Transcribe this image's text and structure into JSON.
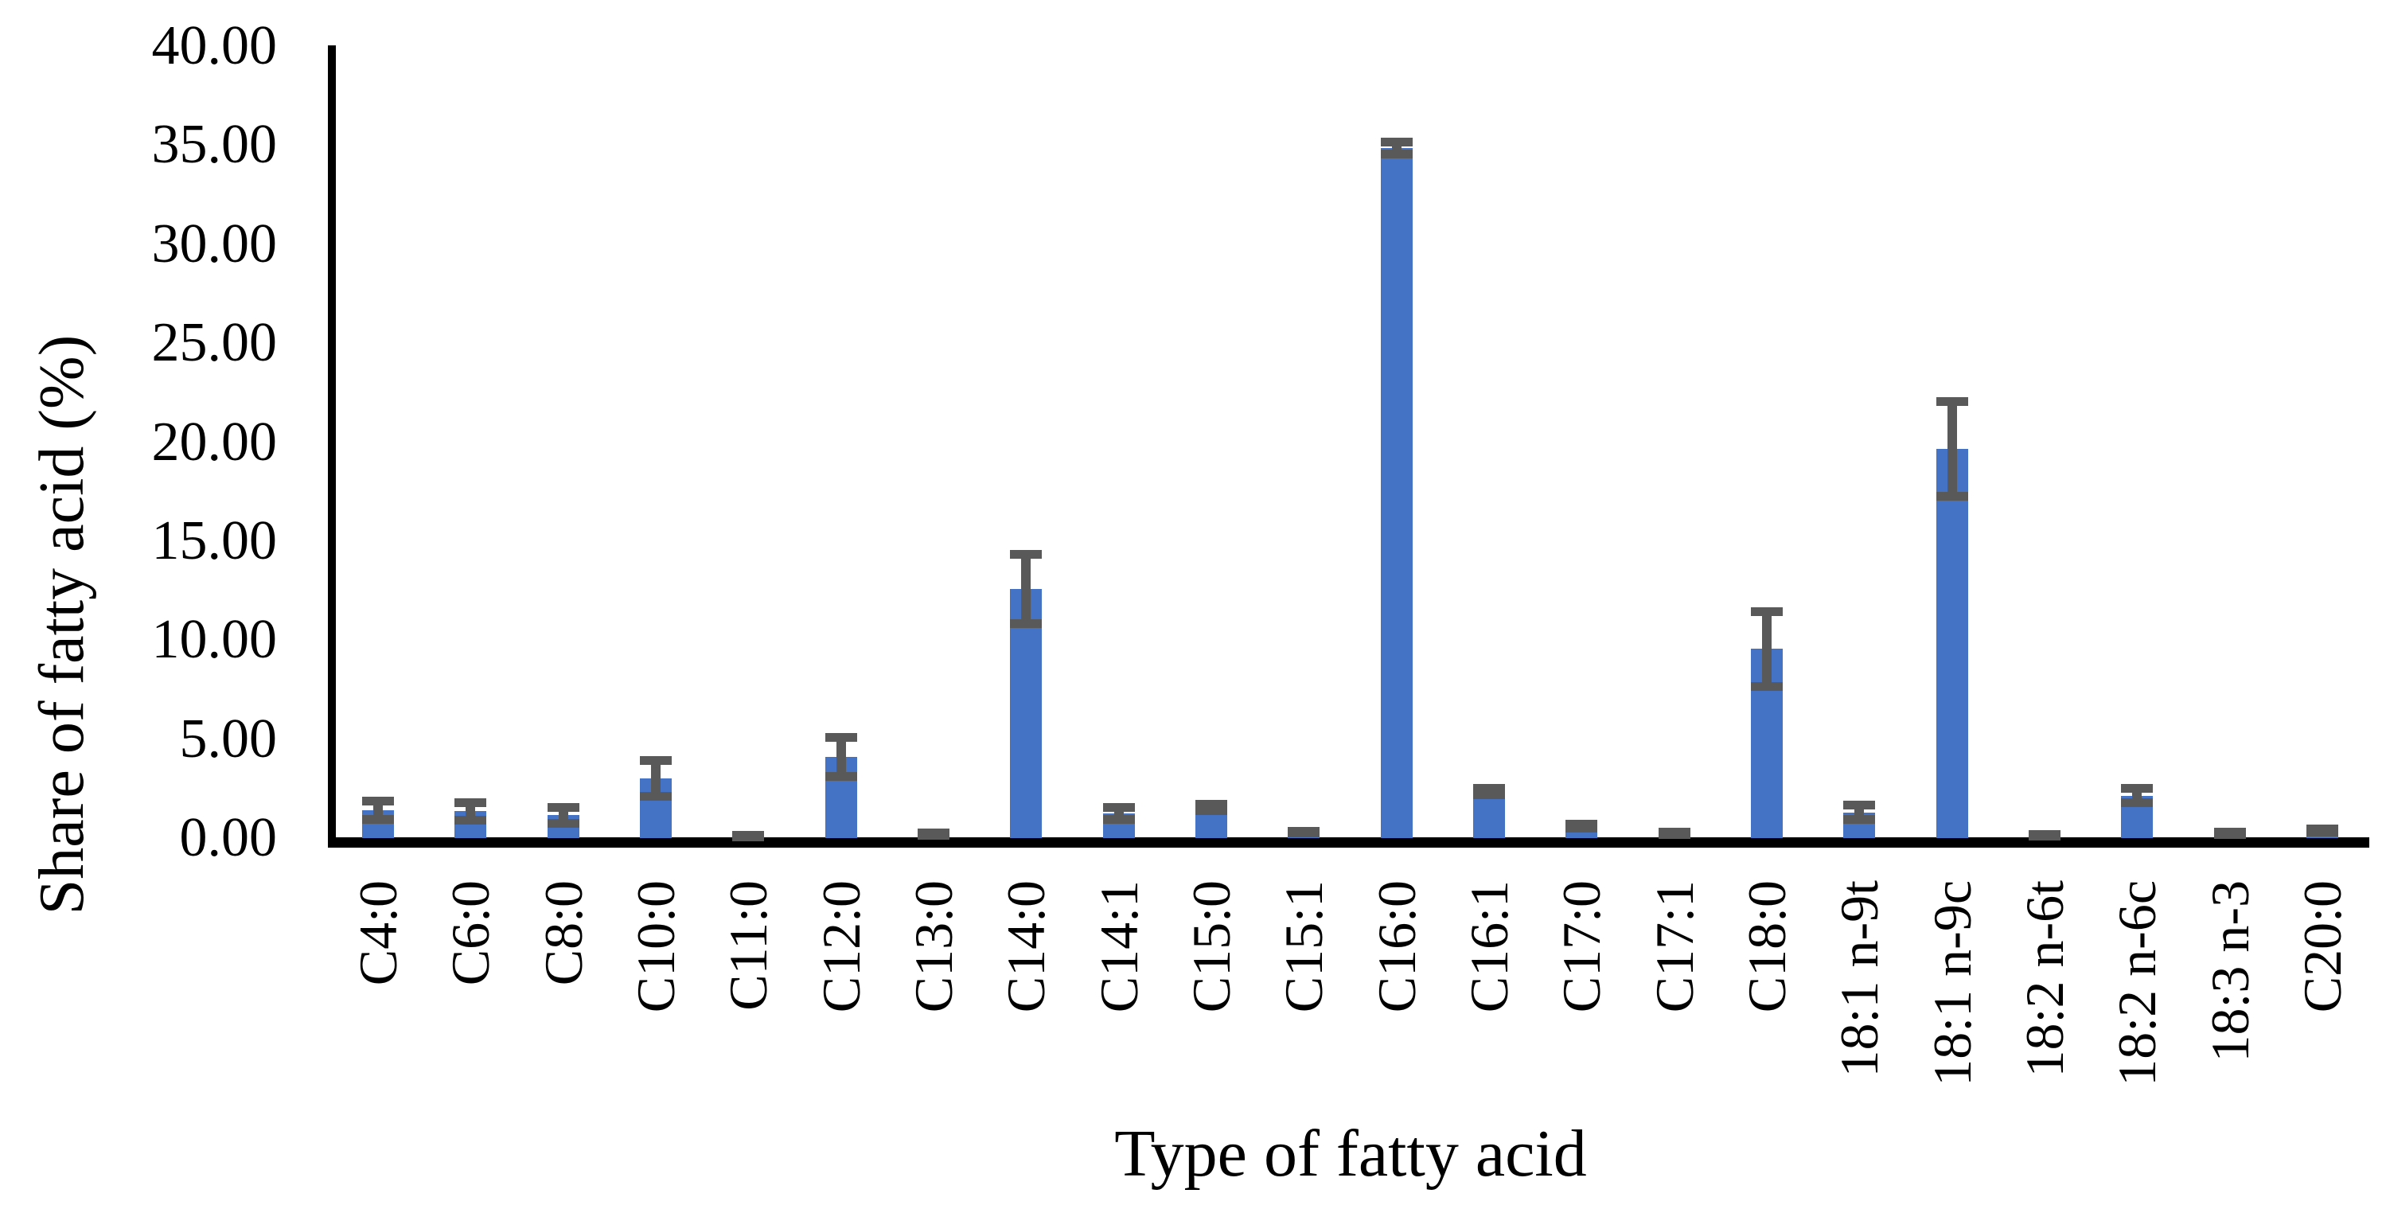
{
  "figure": {
    "y_axis_title": "Share of fatty acid (%)",
    "x_axis_title": "Type of fatty acid"
  },
  "chart_data": {
    "type": "bar",
    "title": "",
    "xlabel": "Type of fatty acid",
    "ylabel": "Share of fatty acid (%)",
    "ylim": [
      0,
      40
    ],
    "y_tick_step": 5,
    "y_tick_labels": [
      "0.00",
      "5.00",
      "10.00",
      "15.00",
      "20.00",
      "25.00",
      "30.00",
      "35.00",
      "40.00"
    ],
    "grid": false,
    "legend_position": "none",
    "bar_color": "#4472C4",
    "error_bar_color": "#595959",
    "axis_color": "#000000",
    "categories": [
      "C4:0",
      "C6:0",
      "C8:0",
      "C10:0",
      "C11:0",
      "C12:0",
      "C13:0",
      "C14:0",
      "C14:1",
      "C15:0",
      "C15:1",
      "C16:0",
      "C16:1",
      "C17:0",
      "C17:1",
      "C18:0",
      "18:1 n-9t",
      "18:1 n-9c",
      "18:2 n-6t",
      "18:2 n-6c",
      "18:3 n-3",
      "C20:0"
    ],
    "values": [
      1.4,
      1.35,
      1.15,
      3.0,
      0.1,
      4.1,
      0.2,
      12.6,
      1.25,
      1.55,
      0.3,
      34.85,
      2.35,
      0.6,
      0.25,
      9.55,
      1.3,
      19.65,
      0.15,
      2.15,
      0.25,
      0.4
    ],
    "error_bars": [
      0.45,
      0.45,
      0.4,
      0.9,
      0.05,
      1.0,
      0.05,
      1.75,
      0.3,
      0.15,
      0.05,
      0.3,
      0.15,
      0.1,
      0.05,
      1.9,
      0.35,
      2.4,
      0.05,
      0.35,
      0.05,
      0.08
    ]
  }
}
